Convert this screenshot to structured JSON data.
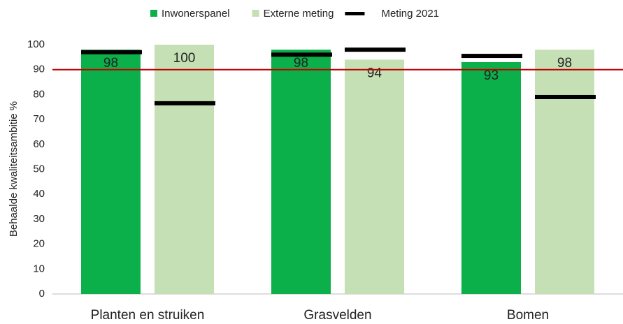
{
  "chart_data": {
    "type": "bar",
    "y_label": "Behaalde kwaliteitsambitie %",
    "categories": [
      "Planten en struiken",
      "Grasvelden",
      "Bomen"
    ],
    "series": [
      {
        "name": "Inwonerspanel",
        "color": "#0bb04a",
        "values": [
          98,
          98,
          93
        ],
        "meting_2021": [
          97,
          96,
          95.5
        ]
      },
      {
        "name": "Externe meting",
        "color": "#c5e0b4",
        "values": [
          100,
          94,
          98
        ],
        "meting_2021": [
          76.5,
          98,
          79
        ]
      }
    ],
    "marker_series": {
      "name": "Meting 2021",
      "color": "#000000"
    },
    "reference_line": {
      "value": 90,
      "color": "#c00000"
    },
    "ylim": [
      0,
      100
    ],
    "yticks": [
      0,
      10,
      20,
      30,
      40,
      50,
      60,
      70,
      80,
      90,
      100
    ],
    "legend": "top"
  }
}
